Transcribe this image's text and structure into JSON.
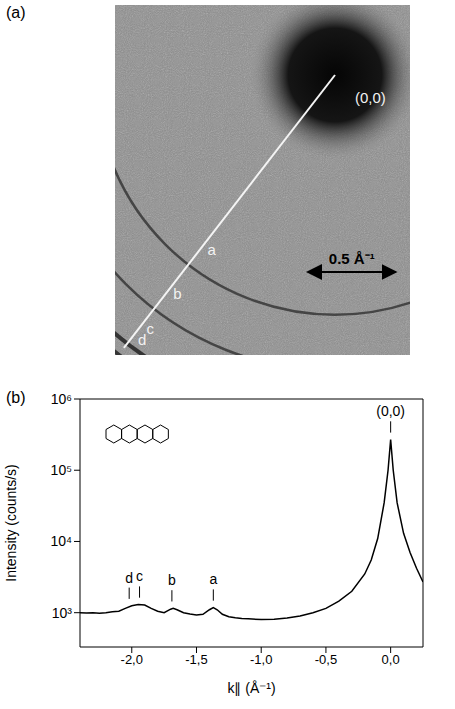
{
  "panel_labels": [
    "(a)",
    "(b)"
  ],
  "image": {
    "spot_label": "(0,0)",
    "scale_bar": {
      "value": 0.5,
      "label": "0.5 Å⁻¹"
    },
    "rings": [
      {
        "label": "a",
        "k": -1.37
      },
      {
        "label": "b",
        "k": -1.69
      },
      {
        "label": "c",
        "k": -1.94
      },
      {
        "label": "d",
        "k": -2.02
      }
    ]
  },
  "chart_data": {
    "type": "line",
    "x_label": "k∥ (Å⁻¹)",
    "y_label": "Intensity (counts/s)",
    "log": "y",
    "color": "#000000",
    "x": [
      -2.4,
      -2.35,
      -2.3,
      -2.25,
      -2.2,
      -2.15,
      -2.1,
      -2.05,
      -2.0,
      -1.95,
      -1.9,
      -1.85,
      -1.8,
      -1.75,
      -1.7,
      -1.68,
      -1.65,
      -1.6,
      -1.55,
      -1.5,
      -1.45,
      -1.4,
      -1.37,
      -1.34,
      -1.3,
      -1.25,
      -1.2,
      -1.15,
      -1.1,
      -1.0,
      -0.9,
      -0.8,
      -0.7,
      -0.6,
      -0.5,
      -0.4,
      -0.3,
      -0.2,
      -0.15,
      -0.1,
      -0.05,
      -0.02,
      0.0,
      0.02,
      0.05,
      0.1,
      0.15,
      0.2,
      0.25
    ],
    "values": [
      1000,
      990,
      1000,
      980,
      1000,
      1030,
      1050,
      1150,
      1250,
      1300,
      1280,
      1150,
      1050,
      1000,
      1120,
      1150,
      1100,
      1000,
      960,
      930,
      950,
      1100,
      1180,
      1100,
      950,
      880,
      850,
      830,
      820,
      800,
      810,
      840,
      900,
      1000,
      1150,
      1450,
      2000,
      3500,
      5500,
      11000,
      35000,
      100000,
      270000,
      100000,
      35000,
      13000,
      7000,
      4200,
      2700
    ],
    "xlim": [
      -2.4,
      0.25
    ],
    "ylim": [
      330,
      1000000
    ],
    "xticks": [
      {
        "value": -2.0,
        "label": "-2,0"
      },
      {
        "value": -1.5,
        "label": "-1,5"
      },
      {
        "value": -1.0,
        "label": "-1,0"
      },
      {
        "value": -0.5,
        "label": "-0,5"
      },
      {
        "value": 0.0,
        "label": "0,0"
      }
    ],
    "yticks": [
      {
        "value": 1000,
        "label": "10³"
      },
      {
        "value": 10000,
        "label": "10⁴"
      },
      {
        "value": 100000,
        "label": "10⁵"
      },
      {
        "value": 1000000,
        "label": "10⁶"
      }
    ],
    "annotations": [
      {
        "label": "d",
        "x": -2.02
      },
      {
        "label": "c",
        "x": -1.94
      },
      {
        "label": "b",
        "x": -1.69
      },
      {
        "label": "a",
        "x": -1.37
      },
      {
        "label": "(0,0)",
        "x": 0.0
      }
    ]
  }
}
